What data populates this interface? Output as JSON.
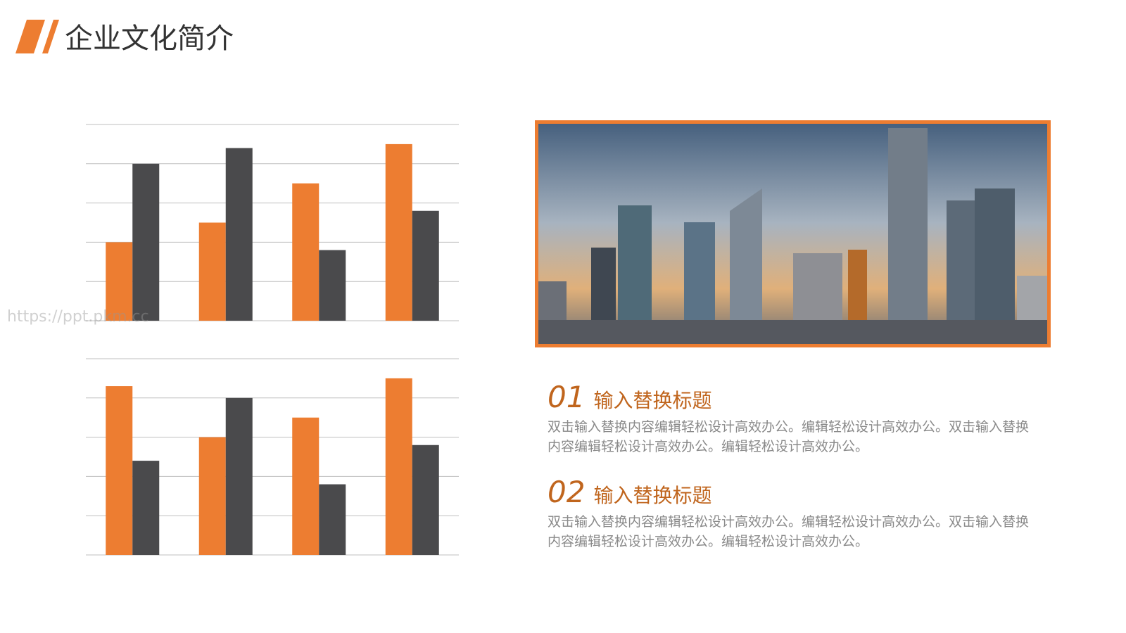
{
  "header": {
    "title": "企业文化简介"
  },
  "watermark": "https://ppt.pkm.cc",
  "chart_data": [
    {
      "type": "bar",
      "categories": [
        null,
        null,
        null,
        null
      ],
      "series": [
        {
          "color": "#ed7d31",
          "values": [
            2.0,
            2.5,
            3.5,
            4.5
          ]
        },
        {
          "color": "#4a4a4c",
          "values": [
            4.0,
            4.4,
            1.8,
            2.8
          ]
        }
      ],
      "ylim": [
        0,
        5
      ],
      "yticks": [
        0,
        1,
        2,
        3,
        4,
        5
      ],
      "grid": true
    },
    {
      "type": "bar",
      "categories": [
        null,
        null,
        null,
        null
      ],
      "series": [
        {
          "color": "#ed7d31",
          "values": [
            4.3,
            3.0,
            3.5,
            4.5
          ]
        },
        {
          "color": "#4a4a4c",
          "values": [
            2.4,
            4.0,
            1.8,
            2.8
          ]
        }
      ],
      "ylim": [
        0,
        5
      ],
      "yticks": [
        0,
        1,
        2,
        3,
        4,
        5
      ],
      "grid": true
    }
  ],
  "items": [
    {
      "number": "01",
      "title": "输入替换标题",
      "body": "双击输入替换内容编辑轻松设计高效办公。编辑轻松设计高效办公。双击输入替换内容编辑轻松设计高效办公。编辑轻松设计高效办公。"
    },
    {
      "number": "02",
      "title": "输入替换标题",
      "body": "双击输入替换内容编辑轻松设计高效办公。编辑轻松设计高效办公。双击输入替换内容编辑轻松设计高效办公。编辑轻松设计高效办公。"
    }
  ]
}
